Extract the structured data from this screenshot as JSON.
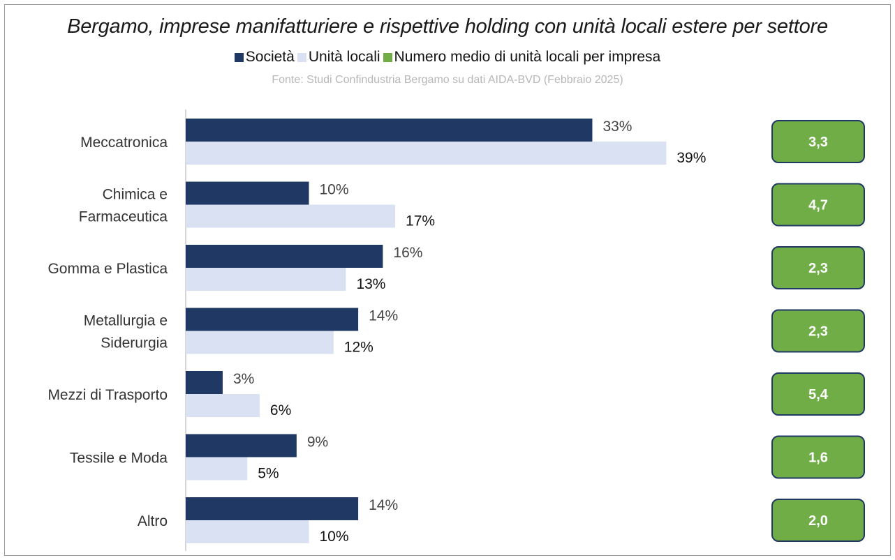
{
  "title": "Bergamo, imprese manifatturiere e rispettive holding con unità locali estere per settore",
  "source": "Fonte: Studi Confindustria Bergamo su dati AIDA-BVD (Febbraio 2025)",
  "legend": [
    {
      "label": "Società",
      "color": "#1f3864"
    },
    {
      "label": "Unità locali",
      "color": "#d9e1f2"
    },
    {
      "label": "Numero medio di unità locali per impresa",
      "color": "#70ad47"
    }
  ],
  "chart_data": {
    "type": "bar",
    "orientation": "horizontal",
    "categories": [
      [
        "Meccatronica"
      ],
      [
        "Chimica e",
        "Farmaceutica"
      ],
      [
        "Gomma e Plastica"
      ],
      [
        "Metallurgia e",
        "Siderurgia"
      ],
      [
        "Mezzi di Trasporto"
      ],
      [
        "Tessile e Moda"
      ],
      [
        "Altro"
      ]
    ],
    "series": [
      {
        "name": "Società",
        "color": "#1f3864",
        "values": [
          33,
          10,
          16,
          14,
          3,
          9,
          14
        ],
        "labels": [
          "33%",
          "10%",
          "16%",
          "14%",
          "3%",
          "9%",
          "14%"
        ]
      },
      {
        "name": "Unità locali",
        "color": "#d9e1f2",
        "values": [
          39,
          17,
          13,
          12,
          6,
          5,
          10
        ],
        "labels": [
          "39%",
          "17%",
          "13%",
          "12%",
          "6%",
          "5%",
          "10%"
        ]
      }
    ],
    "side_values": {
      "name": "Numero medio di unità locali per impresa",
      "color": "#70ad47",
      "border": "#1f3864",
      "values": [
        "3,3",
        "4,7",
        "2,3",
        "2,3",
        "5,4",
        "1,6",
        "2,0"
      ]
    },
    "xlim": [
      0,
      40
    ],
    "grid": false,
    "legend_position": "top"
  }
}
